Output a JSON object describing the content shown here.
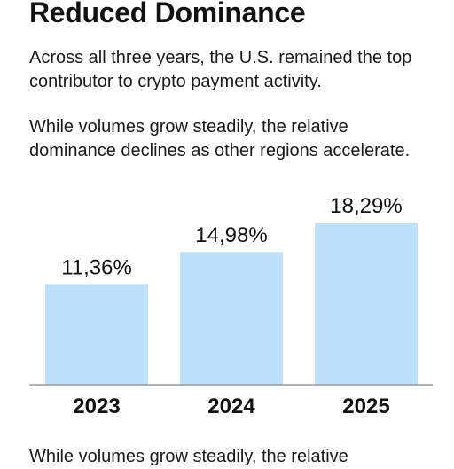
{
  "header": {
    "title": "Reduced Dominance",
    "paragraph1": "Across all three years, the U.S. remained the top contributor to crypto payment activity.",
    "paragraph2": "While volumes grow steadily, the relative dominance declines as other regions accelerate.",
    "trailing_text": "While volumes grow steadily, the relative"
  },
  "colors": {
    "bar": "#bfe0fb",
    "baseline": "#9a9a9a",
    "text": "#111111"
  },
  "chart_data": {
    "type": "bar",
    "categories": [
      "2023",
      "2024",
      "2025"
    ],
    "values": [
      11.36,
      14.98,
      18.29
    ],
    "value_labels": [
      "11,36%",
      "14,98%",
      "18,29%"
    ],
    "ylim": [
      0,
      20
    ],
    "grid": false,
    "legend": "none",
    "title": "",
    "xlabel": "",
    "ylabel": ""
  }
}
